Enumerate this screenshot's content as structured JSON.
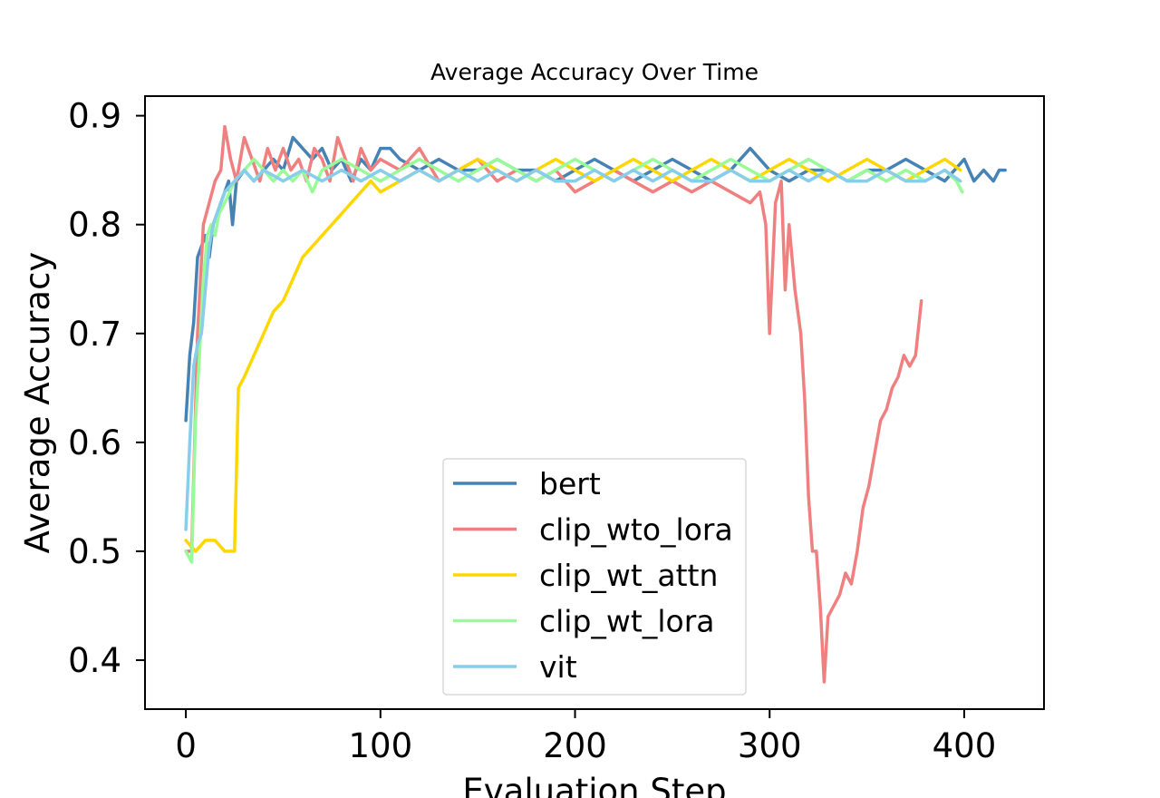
{
  "chart_data": {
    "type": "line",
    "title": "Average Accuracy Over Time",
    "xlabel": "Evaluation Step",
    "ylabel": "Average Accuracy",
    "xlim": [
      -21,
      441
    ],
    "ylim": [
      0.355,
      0.918
    ],
    "xticks": [
      0,
      100,
      200,
      300,
      400
    ],
    "yticks": [
      0.4,
      0.5,
      0.6,
      0.7,
      0.8,
      0.9
    ],
    "grid": false,
    "legend_position": "lower center",
    "series": [
      {
        "name": "bert",
        "color": "#4682B4",
        "points": [
          [
            0,
            0.62
          ],
          [
            2,
            0.68
          ],
          [
            4,
            0.71
          ],
          [
            6,
            0.77
          ],
          [
            8,
            0.78
          ],
          [
            10,
            0.79
          ],
          [
            12,
            0.77
          ],
          [
            14,
            0.8
          ],
          [
            16,
            0.81
          ],
          [
            18,
            0.82
          ],
          [
            20,
            0.83
          ],
          [
            22,
            0.84
          ],
          [
            24,
            0.8
          ],
          [
            26,
            0.84
          ],
          [
            30,
            0.85
          ],
          [
            35,
            0.84
          ],
          [
            40,
            0.85
          ],
          [
            45,
            0.86
          ],
          [
            50,
            0.85
          ],
          [
            55,
            0.88
          ],
          [
            60,
            0.87
          ],
          [
            65,
            0.86
          ],
          [
            70,
            0.87
          ],
          [
            75,
            0.85
          ],
          [
            80,
            0.86
          ],
          [
            85,
            0.84
          ],
          [
            90,
            0.86
          ],
          [
            95,
            0.85
          ],
          [
            100,
            0.87
          ],
          [
            105,
            0.87
          ],
          [
            110,
            0.86
          ],
          [
            120,
            0.85
          ],
          [
            130,
            0.86
          ],
          [
            140,
            0.85
          ],
          [
            150,
            0.85
          ],
          [
            160,
            0.86
          ],
          [
            170,
            0.85
          ],
          [
            180,
            0.85
          ],
          [
            190,
            0.84
          ],
          [
            200,
            0.85
          ],
          [
            210,
            0.86
          ],
          [
            220,
            0.85
          ],
          [
            230,
            0.84
          ],
          [
            240,
            0.85
          ],
          [
            250,
            0.86
          ],
          [
            260,
            0.85
          ],
          [
            270,
            0.84
          ],
          [
            280,
            0.85
          ],
          [
            290,
            0.87
          ],
          [
            300,
            0.85
          ],
          [
            310,
            0.84
          ],
          [
            320,
            0.85
          ],
          [
            330,
            0.85
          ],
          [
            340,
            0.84
          ],
          [
            350,
            0.85
          ],
          [
            360,
            0.85
          ],
          [
            370,
            0.86
          ],
          [
            380,
            0.85
          ],
          [
            390,
            0.84
          ],
          [
            400,
            0.86
          ],
          [
            405,
            0.84
          ],
          [
            410,
            0.85
          ],
          [
            415,
            0.84
          ],
          [
            418,
            0.85
          ],
          [
            421,
            0.85
          ]
        ]
      },
      {
        "name": "clip_wto_lora",
        "color": "#F08080",
        "points": [
          [
            0,
            0.5
          ],
          [
            3,
            0.5
          ],
          [
            6,
            0.7
          ],
          [
            9,
            0.8
          ],
          [
            12,
            0.82
          ],
          [
            15,
            0.84
          ],
          [
            18,
            0.85
          ],
          [
            20,
            0.89
          ],
          [
            23,
            0.86
          ],
          [
            26,
            0.84
          ],
          [
            30,
            0.88
          ],
          [
            34,
            0.86
          ],
          [
            38,
            0.84
          ],
          [
            42,
            0.87
          ],
          [
            46,
            0.85
          ],
          [
            50,
            0.87
          ],
          [
            54,
            0.85
          ],
          [
            58,
            0.86
          ],
          [
            62,
            0.84
          ],
          [
            66,
            0.87
          ],
          [
            70,
            0.86
          ],
          [
            74,
            0.84
          ],
          [
            78,
            0.88
          ],
          [
            82,
            0.86
          ],
          [
            86,
            0.84
          ],
          [
            90,
            0.87
          ],
          [
            95,
            0.85
          ],
          [
            100,
            0.86
          ],
          [
            110,
            0.85
          ],
          [
            120,
            0.87
          ],
          [
            130,
            0.84
          ],
          [
            140,
            0.85
          ],
          [
            150,
            0.86
          ],
          [
            160,
            0.84
          ],
          [
            170,
            0.85
          ],
          [
            180,
            0.84
          ],
          [
            190,
            0.85
          ],
          [
            200,
            0.83
          ],
          [
            210,
            0.84
          ],
          [
            220,
            0.85
          ],
          [
            230,
            0.84
          ],
          [
            240,
            0.83
          ],
          [
            250,
            0.84
          ],
          [
            260,
            0.83
          ],
          [
            270,
            0.84
          ],
          [
            280,
            0.83
          ],
          [
            290,
            0.82
          ],
          [
            295,
            0.83
          ],
          [
            298,
            0.8
          ],
          [
            300,
            0.7
          ],
          [
            303,
            0.82
          ],
          [
            306,
            0.84
          ],
          [
            308,
            0.74
          ],
          [
            310,
            0.8
          ],
          [
            313,
            0.74
          ],
          [
            316,
            0.7
          ],
          [
            318,
            0.64
          ],
          [
            320,
            0.55
          ],
          [
            322,
            0.5
          ],
          [
            324,
            0.5
          ],
          [
            326,
            0.45
          ],
          [
            328,
            0.38
          ],
          [
            330,
            0.44
          ],
          [
            333,
            0.45
          ],
          [
            336,
            0.46
          ],
          [
            339,
            0.48
          ],
          [
            342,
            0.47
          ],
          [
            345,
            0.5
          ],
          [
            348,
            0.54
          ],
          [
            351,
            0.56
          ],
          [
            354,
            0.59
          ],
          [
            357,
            0.62
          ],
          [
            360,
            0.63
          ],
          [
            363,
            0.65
          ],
          [
            366,
            0.66
          ],
          [
            369,
            0.68
          ],
          [
            372,
            0.67
          ],
          [
            375,
            0.68
          ],
          [
            378,
            0.73
          ]
        ]
      },
      {
        "name": "clip_wt_attn",
        "color": "#FFD700",
        "points": [
          [
            0,
            0.51
          ],
          [
            5,
            0.5
          ],
          [
            10,
            0.51
          ],
          [
            15,
            0.51
          ],
          [
            20,
            0.5
          ],
          [
            25,
            0.5
          ],
          [
            27,
            0.65
          ],
          [
            30,
            0.66
          ],
          [
            35,
            0.68
          ],
          [
            40,
            0.7
          ],
          [
            45,
            0.72
          ],
          [
            50,
            0.73
          ],
          [
            55,
            0.75
          ],
          [
            60,
            0.77
          ],
          [
            65,
            0.78
          ],
          [
            70,
            0.79
          ],
          [
            75,
            0.8
          ],
          [
            80,
            0.81
          ],
          [
            85,
            0.82
          ],
          [
            90,
            0.83
          ],
          [
            95,
            0.84
          ],
          [
            100,
            0.83
          ],
          [
            110,
            0.84
          ],
          [
            120,
            0.85
          ],
          [
            130,
            0.84
          ],
          [
            140,
            0.85
          ],
          [
            150,
            0.86
          ],
          [
            160,
            0.85
          ],
          [
            170,
            0.84
          ],
          [
            180,
            0.85
          ],
          [
            190,
            0.86
          ],
          [
            200,
            0.85
          ],
          [
            210,
            0.84
          ],
          [
            220,
            0.85
          ],
          [
            230,
            0.86
          ],
          [
            240,
            0.85
          ],
          [
            250,
            0.84
          ],
          [
            260,
            0.85
          ],
          [
            270,
            0.86
          ],
          [
            280,
            0.85
          ],
          [
            290,
            0.84
          ],
          [
            300,
            0.85
          ],
          [
            310,
            0.86
          ],
          [
            320,
            0.85
          ],
          [
            330,
            0.84
          ],
          [
            340,
            0.85
          ],
          [
            350,
            0.86
          ],
          [
            360,
            0.85
          ],
          [
            370,
            0.84
          ],
          [
            380,
            0.85
          ],
          [
            390,
            0.86
          ],
          [
            398,
            0.85
          ]
        ]
      },
      {
        "name": "clip_wt_lora",
        "color": "#98FB98",
        "points": [
          [
            0,
            0.5
          ],
          [
            3,
            0.49
          ],
          [
            5,
            0.62
          ],
          [
            7,
            0.68
          ],
          [
            9,
            0.75
          ],
          [
            11,
            0.79
          ],
          [
            13,
            0.8
          ],
          [
            15,
            0.79
          ],
          [
            17,
            0.81
          ],
          [
            20,
            0.82
          ],
          [
            25,
            0.84
          ],
          [
            30,
            0.85
          ],
          [
            35,
            0.86
          ],
          [
            40,
            0.85
          ],
          [
            45,
            0.84
          ],
          [
            50,
            0.85
          ],
          [
            55,
            0.84
          ],
          [
            60,
            0.85
          ],
          [
            65,
            0.83
          ],
          [
            70,
            0.85
          ],
          [
            80,
            0.86
          ],
          [
            90,
            0.85
          ],
          [
            100,
            0.84
          ],
          [
            110,
            0.85
          ],
          [
            120,
            0.86
          ],
          [
            130,
            0.85
          ],
          [
            140,
            0.84
          ],
          [
            150,
            0.85
          ],
          [
            160,
            0.86
          ],
          [
            170,
            0.85
          ],
          [
            180,
            0.84
          ],
          [
            190,
            0.85
          ],
          [
            200,
            0.86
          ],
          [
            210,
            0.85
          ],
          [
            220,
            0.84
          ],
          [
            230,
            0.85
          ],
          [
            240,
            0.86
          ],
          [
            250,
            0.85
          ],
          [
            260,
            0.84
          ],
          [
            270,
            0.85
          ],
          [
            280,
            0.86
          ],
          [
            290,
            0.85
          ],
          [
            300,
            0.84
          ],
          [
            310,
            0.85
          ],
          [
            320,
            0.86
          ],
          [
            330,
            0.85
          ],
          [
            340,
            0.84
          ],
          [
            350,
            0.85
          ],
          [
            360,
            0.84
          ],
          [
            370,
            0.85
          ],
          [
            380,
            0.84
          ],
          [
            390,
            0.85
          ],
          [
            396,
            0.84
          ],
          [
            399,
            0.83
          ]
        ]
      },
      {
        "name": "vit",
        "color": "#87CEEB",
        "points": [
          [
            0,
            0.52
          ],
          [
            2,
            0.6
          ],
          [
            4,
            0.67
          ],
          [
            6,
            0.69
          ],
          [
            8,
            0.7
          ],
          [
            10,
            0.74
          ],
          [
            12,
            0.78
          ],
          [
            14,
            0.8
          ],
          [
            16,
            0.81
          ],
          [
            18,
            0.82
          ],
          [
            20,
            0.83
          ],
          [
            25,
            0.84
          ],
          [
            30,
            0.85
          ],
          [
            35,
            0.84
          ],
          [
            40,
            0.85
          ],
          [
            50,
            0.84
          ],
          [
            60,
            0.85
          ],
          [
            70,
            0.84
          ],
          [
            80,
            0.85
          ],
          [
            90,
            0.84
          ],
          [
            100,
            0.85
          ],
          [
            110,
            0.84
          ],
          [
            120,
            0.85
          ],
          [
            130,
            0.84
          ],
          [
            140,
            0.85
          ],
          [
            150,
            0.84
          ],
          [
            160,
            0.85
          ],
          [
            170,
            0.84
          ],
          [
            180,
            0.85
          ],
          [
            190,
            0.84
          ],
          [
            200,
            0.84
          ],
          [
            210,
            0.85
          ],
          [
            220,
            0.84
          ],
          [
            230,
            0.85
          ],
          [
            240,
            0.84
          ],
          [
            250,
            0.85
          ],
          [
            260,
            0.84
          ],
          [
            270,
            0.84
          ],
          [
            280,
            0.85
          ],
          [
            290,
            0.84
          ],
          [
            300,
            0.84
          ],
          [
            310,
            0.85
          ],
          [
            320,
            0.84
          ],
          [
            330,
            0.85
          ],
          [
            340,
            0.84
          ],
          [
            350,
            0.84
          ],
          [
            360,
            0.85
          ],
          [
            370,
            0.84
          ],
          [
            380,
            0.84
          ],
          [
            390,
            0.85
          ],
          [
            398,
            0.84
          ]
        ]
      }
    ]
  }
}
